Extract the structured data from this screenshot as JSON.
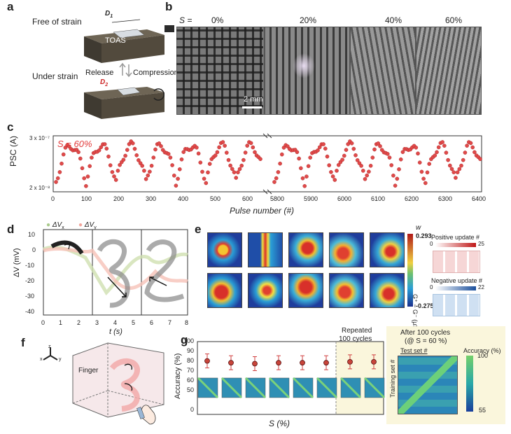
{
  "panels": {
    "a": "a",
    "b": "b",
    "c": "c",
    "d": "d",
    "e": "e",
    "f": "f",
    "g": "g"
  },
  "a": {
    "free": "Free of strain",
    "under": "Under strain",
    "release": "Release",
    "compression": "Compression",
    "toas": "TOAS",
    "d1": "D",
    "d1sub": "1",
    "d2": "D",
    "d2sub": "2"
  },
  "b": {
    "s_label": "S =",
    "strains": [
      "0%",
      "20%",
      "40%",
      "60%"
    ],
    "scale": "2 mm"
  },
  "c": {
    "annotation": "S = 60%",
    "ylabel": "PSC (A)",
    "ytick_top": "3 x 10⁻⁷",
    "ytick_bottom": "2 x 10⁻⁸",
    "xlabel": "Pulse number (#)",
    "xticks_left": [
      "0",
      "100",
      "200",
      "300",
      "400",
      "500",
      "600"
    ],
    "xticks_right": [
      "5800",
      "5900",
      "6000",
      "6100",
      "6200",
      "6300",
      "6400"
    ]
  },
  "d": {
    "legend_x": "ΔV",
    "legend_x_sub": "x",
    "legend_y": "ΔV",
    "legend_y_sub": "y",
    "ylabel": "ΔV (mV)",
    "xlabel": "t (s)",
    "yticks": [
      "10",
      "0",
      "-10",
      "-20",
      "-30",
      "-40"
    ],
    "xticks": [
      "0",
      "1",
      "2",
      "3",
      "4",
      "5",
      "6",
      "7",
      "8"
    ]
  },
  "e": {
    "w": "w",
    "cmax": "0.293",
    "cmin": "-0.275",
    "cbar_label": "G⁺ − G⁻ (μS)",
    "pos": "Positive update #",
    "pos_min": "0",
    "pos_max": "25",
    "neg": "Negative update #",
    "neg_min": "0",
    "neg_max": "22"
  },
  "f": {
    "finger": "Finger",
    "axis_x": "x",
    "axis_y": "y",
    "axis_z": "z"
  },
  "g": {
    "ylabel": "Accuracy (%)",
    "xlabel": "S (%)",
    "yticks": [
      "100",
      "90",
      "80",
      "70",
      "60",
      "50",
      "0"
    ],
    "repeated": "Repeated\n100 cycles",
    "after": "After 100 cycles",
    "after2": "(@ S = 60 %)",
    "testset": "Test set #",
    "trainset": "Training set #",
    "acc_label": "Accuracy (%)",
    "acc_max": "100",
    "acc_min": "55"
  },
  "chart_data": [
    {
      "type": "scatter",
      "panel": "g",
      "ylabel": "Accuracy (%)",
      "xlabel": "S (%)",
      "ylim": [
        0,
        100
      ],
      "series": [
        {
          "values": [
            88,
            86,
            85,
            86,
            86,
            86,
            87,
            87
          ]
        }
      ]
    }
  ]
}
